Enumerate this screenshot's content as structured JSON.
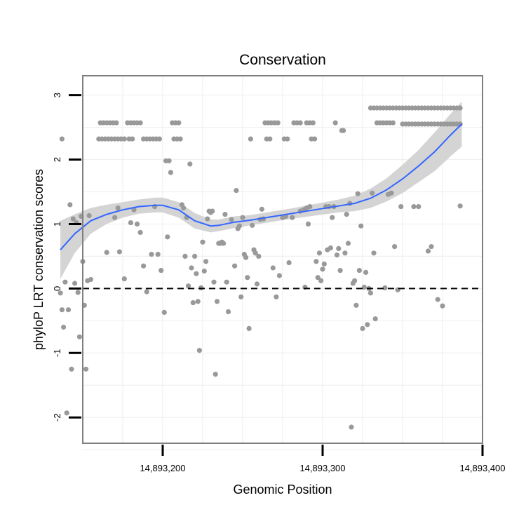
{
  "chart_data": {
    "type": "scatter",
    "title": "Conservation",
    "xlabel": "Genomic Position",
    "ylabel": "phyloP LRT conservation scores",
    "xlim": [
      14893150,
      14893400
    ],
    "ylim": [
      -2.4,
      3.3
    ],
    "x_ticks": [
      14893200,
      14893300,
      14893400
    ],
    "x_tick_labels": [
      "14,893,200",
      "14,893,300",
      "14,893,400"
    ],
    "y_ticks": [
      -2,
      -1,
      0,
      1,
      2,
      3
    ],
    "y_tick_labels": [
      "-2",
      "-1",
      "0",
      "1",
      "2",
      "3"
    ],
    "grid": true,
    "reference_line": {
      "y": 0,
      "style": "dashed"
    },
    "colors": {
      "points": "#999999",
      "smooth": "#3366ff",
      "band": "#d4d4d4",
      "panel_border": "#7f7f7f"
    },
    "points": [
      [
        14893137,
        2.32
      ],
      [
        14893136,
        -0.07
      ],
      [
        14893137,
        -0.33
      ],
      [
        14893138,
        -0.6
      ],
      [
        14893139,
        0.1
      ],
      [
        14893140,
        -1.93
      ],
      [
        14893141,
        -0.33
      ],
      [
        14893142,
        1.3
      ],
      [
        14893143,
        -1.25
      ],
      [
        14893144,
        1.08
      ],
      [
        14893145,
        0.08
      ],
      [
        14893146,
        1.02
      ],
      [
        14893147,
        -0.06
      ],
      [
        14893148,
        -0.75
      ],
      [
        14893149,
        1.12
      ],
      [
        14893150,
        0.42
      ],
      [
        14893151,
        -0.26
      ],
      [
        14893152,
        -1.25
      ],
      [
        14893153,
        0.12
      ],
      [
        14893154,
        1.13
      ],
      [
        14893155,
        0.14
      ],
      [
        14893160,
        2.32
      ],
      [
        14893162,
        2.32
      ],
      [
        14893164,
        2.32
      ],
      [
        14893166,
        2.32
      ],
      [
        14893168,
        2.32
      ],
      [
        14893170,
        2.32
      ],
      [
        14893172,
        2.32
      ],
      [
        14893174,
        2.32
      ],
      [
        14893176,
        2.32
      ],
      [
        14893161,
        2.57
      ],
      [
        14893163,
        2.57
      ],
      [
        14893165,
        2.57
      ],
      [
        14893167,
        2.57
      ],
      [
        14893169,
        2.57
      ],
      [
        14893171,
        2.57
      ],
      [
        14893165,
        0.56
      ],
      [
        14893170,
        1.1
      ],
      [
        14893172,
        1.25
      ],
      [
        14893173,
        0.57
      ],
      [
        14893176,
        0.15
      ],
      [
        14893178,
        2.57
      ],
      [
        14893180,
        2.57
      ],
      [
        14893182,
        2.57
      ],
      [
        14893184,
        2.57
      ],
      [
        14893186,
        2.57
      ],
      [
        14893179,
        2.32
      ],
      [
        14893181,
        2.32
      ],
      [
        14893188,
        2.32
      ],
      [
        14893190,
        2.32
      ],
      [
        14893192,
        2.32
      ],
      [
        14893194,
        2.32
      ],
      [
        14893196,
        2.32
      ],
      [
        14893198,
        2.32
      ],
      [
        14893180,
        1.02
      ],
      [
        14893182,
        1.22
      ],
      [
        14893184,
        1.0
      ],
      [
        14893186,
        0.87
      ],
      [
        14893188,
        0.35
      ],
      [
        14893190,
        -0.05
      ],
      [
        14893193,
        0.53
      ],
      [
        14893195,
        1.27
      ],
      [
        14893197,
        0.53
      ],
      [
        14893199,
        0.28
      ],
      [
        14893201,
        -0.37
      ],
      [
        14893202,
        1.98
      ],
      [
        14893204,
        1.98
      ],
      [
        14893205,
        1.8
      ],
      [
        14893206,
        2.57
      ],
      [
        14893208,
        2.57
      ],
      [
        14893210,
        2.57
      ],
      [
        14893207,
        2.32
      ],
      [
        14893209,
        2.32
      ],
      [
        14893211,
        2.32
      ],
      [
        14893203,
        0.8
      ],
      [
        14893212,
        1.3
      ],
      [
        14893213,
        1.25
      ],
      [
        14893214,
        0.5
      ],
      [
        14893215,
        1.1
      ],
      [
        14893216,
        0.04
      ],
      [
        14893217,
        1.93
      ],
      [
        14893218,
        0.32
      ],
      [
        14893219,
        -0.22
      ],
      [
        14893220,
        0.5
      ],
      [
        14893221,
        0.23
      ],
      [
        14893222,
        -0.2
      ],
      [
        14893223,
        -0.96
      ],
      [
        14893224,
        0.01
      ],
      [
        14893225,
        0.72
      ],
      [
        14893226,
        0.27
      ],
      [
        14893227,
        0.42
      ],
      [
        14893228,
        1.08
      ],
      [
        14893229,
        1.2
      ],
      [
        14893230,
        1.18
      ],
      [
        14893231,
        1.2
      ],
      [
        14893232,
        0.1
      ],
      [
        14893233,
        -1.33
      ],
      [
        14893234,
        -0.2
      ],
      [
        14893235,
        0.7
      ],
      [
        14893236,
        0.7
      ],
      [
        14893237,
        0.72
      ],
      [
        14893238,
        0.7
      ],
      [
        14893239,
        1.15
      ],
      [
        14893240,
        0.1
      ],
      [
        14893241,
        -0.36
      ],
      [
        14893243,
        1.07
      ],
      [
        14893245,
        0.35
      ],
      [
        14893246,
        1.52
      ],
      [
        14893247,
        0.93
      ],
      [
        14893248,
        0.97
      ],
      [
        14893249,
        -0.13
      ],
      [
        14893250,
        1.1
      ],
      [
        14893251,
        0.53
      ],
      [
        14893252,
        0.48
      ],
      [
        14893253,
        0.17
      ],
      [
        14893254,
        -0.62
      ],
      [
        14893255,
        2.32
      ],
      [
        14893256,
        0.98
      ],
      [
        14893257,
        0.6
      ],
      [
        14893258,
        0.55
      ],
      [
        14893259,
        0.07
      ],
      [
        14893260,
        0.5
      ],
      [
        14893261,
        1.07
      ],
      [
        14893262,
        1.23
      ],
      [
        14893263,
        1.08
      ],
      [
        14893264,
        2.57
      ],
      [
        14893266,
        2.57
      ],
      [
        14893268,
        2.57
      ],
      [
        14893270,
        2.57
      ],
      [
        14893272,
        2.57
      ],
      [
        14893265,
        2.32
      ],
      [
        14893267,
        2.32
      ],
      [
        14893276,
        2.32
      ],
      [
        14893278,
        2.32
      ],
      [
        14893269,
        0.32
      ],
      [
        14893271,
        -0.13
      ],
      [
        14893273,
        0.2
      ],
      [
        14893275,
        1.1
      ],
      [
        14893277,
        1.12
      ],
      [
        14893279,
        0.4
      ],
      [
        14893281,
        1.1
      ],
      [
        14893282,
        2.57
      ],
      [
        14893284,
        2.57
      ],
      [
        14893286,
        2.57
      ],
      [
        14893290,
        2.57
      ],
      [
        14893292,
        2.57
      ],
      [
        14893294,
        2.57
      ],
      [
        14893286,
        1.2
      ],
      [
        14893288,
        1.22
      ],
      [
        14893290,
        1.25
      ],
      [
        14893292,
        1.27
      ],
      [
        14893289,
        0.02
      ],
      [
        14893291,
        1.0
      ],
      [
        14893293,
        2.32
      ],
      [
        14893295,
        2.32
      ],
      [
        14893296,
        0.42
      ],
      [
        14893297,
        0.17
      ],
      [
        14893298,
        0.55
      ],
      [
        14893299,
        0.12
      ],
      [
        14893300,
        0.3
      ],
      [
        14893301,
        0.38
      ],
      [
        14893302,
        1.27
      ],
      [
        14893303,
        0.6
      ],
      [
        14893304,
        1.27
      ],
      [
        14893305,
        0.63
      ],
      [
        14893306,
        1.1
      ],
      [
        14893307,
        1.27
      ],
      [
        14893308,
        2.57
      ],
      [
        14893309,
        0.52
      ],
      [
        14893310,
        0.62
      ],
      [
        14893311,
        0.28
      ],
      [
        14893312,
        2.45
      ],
      [
        14893313,
        2.45
      ],
      [
        14893314,
        0.55
      ],
      [
        14893315,
        1.15
      ],
      [
        14893316,
        0.7
      ],
      [
        14893317,
        1.32
      ],
      [
        14893318,
        -2.15
      ],
      [
        14893319,
        0.08
      ],
      [
        14893320,
        0.12
      ],
      [
        14893321,
        -0.26
      ],
      [
        14893322,
        1.47
      ],
      [
        14893323,
        0.28
      ],
      [
        14893324,
        0.97
      ],
      [
        14893325,
        -0.62
      ],
      [
        14893326,
        0.02
      ],
      [
        14893327,
        0.25
      ],
      [
        14893328,
        -0.56
      ],
      [
        14893329,
        0.0
      ],
      [
        14893330,
        -0.07
      ],
      [
        14893331,
        1.48
      ],
      [
        14893332,
        0.55
      ],
      [
        14893333,
        -0.47
      ],
      [
        14893334,
        2.57
      ],
      [
        14893336,
        2.57
      ],
      [
        14893338,
        2.57
      ],
      [
        14893340,
        2.57
      ],
      [
        14893342,
        2.57
      ],
      [
        14893344,
        2.57
      ],
      [
        14893339,
        0.01
      ],
      [
        14893341,
        1.46
      ],
      [
        14893343,
        1.48
      ],
      [
        14893345,
        0.65
      ],
      [
        14893347,
        -0.02
      ],
      [
        14893349,
        1.27
      ],
      [
        14893330,
        2.8
      ],
      [
        14893332,
        2.8
      ],
      [
        14893334,
        2.8
      ],
      [
        14893336,
        2.8
      ],
      [
        14893338,
        2.8
      ],
      [
        14893340,
        2.8
      ],
      [
        14893342,
        2.8
      ],
      [
        14893344,
        2.8
      ],
      [
        14893346,
        2.8
      ],
      [
        14893348,
        2.8
      ],
      [
        14893350,
        2.8
      ],
      [
        14893352,
        2.8
      ],
      [
        14893354,
        2.8
      ],
      [
        14893356,
        2.8
      ],
      [
        14893358,
        2.8
      ],
      [
        14893360,
        2.8
      ],
      [
        14893362,
        2.8
      ],
      [
        14893364,
        2.8
      ],
      [
        14893366,
        2.8
      ],
      [
        14893368,
        2.8
      ],
      [
        14893370,
        2.8
      ],
      [
        14893372,
        2.8
      ],
      [
        14893374,
        2.8
      ],
      [
        14893376,
        2.8
      ],
      [
        14893378,
        2.8
      ],
      [
        14893380,
        2.8
      ],
      [
        14893382,
        2.8
      ],
      [
        14893384,
        2.8
      ],
      [
        14893386,
        2.8
      ],
      [
        14893350,
        2.55
      ],
      [
        14893352,
        2.55
      ],
      [
        14893354,
        2.55
      ],
      [
        14893356,
        2.55
      ],
      [
        14893358,
        2.55
      ],
      [
        14893360,
        2.55
      ],
      [
        14893362,
        2.55
      ],
      [
        14893364,
        2.55
      ],
      [
        14893366,
        2.55
      ],
      [
        14893368,
        2.55
      ],
      [
        14893370,
        2.55
      ],
      [
        14893372,
        2.55
      ],
      [
        14893374,
        2.55
      ],
      [
        14893376,
        2.55
      ],
      [
        14893378,
        2.55
      ],
      [
        14893380,
        2.55
      ],
      [
        14893382,
        2.55
      ],
      [
        14893384,
        2.55
      ],
      [
        14893386,
        2.55
      ],
      [
        14893357,
        1.27
      ],
      [
        14893360,
        1.27
      ],
      [
        14893366,
        0.58
      ],
      [
        14893368,
        0.65
      ],
      [
        14893372,
        -0.17
      ],
      [
        14893375,
        -0.27
      ],
      [
        14893386,
        1.28
      ]
    ],
    "smooth": {
      "x": [
        14893136,
        14893145,
        14893155,
        14893165,
        14893175,
        14893185,
        14893195,
        14893200,
        14893210,
        14893220,
        14893230,
        14893235,
        14893245,
        14893255,
        14893265,
        14893280,
        14893295,
        14893310,
        14893320,
        14893330,
        14893340,
        14893350,
        14893360,
        14893370,
        14893380,
        14893387
      ],
      "y": [
        0.6,
        0.85,
        1.05,
        1.15,
        1.22,
        1.27,
        1.29,
        1.29,
        1.22,
        1.05,
        0.97,
        0.98,
        1.03,
        1.06,
        1.1,
        1.16,
        1.22,
        1.28,
        1.32,
        1.4,
        1.53,
        1.7,
        1.9,
        2.12,
        2.38,
        2.55
      ],
      "lower": [
        0.15,
        0.55,
        0.85,
        1.0,
        1.1,
        1.16,
        1.18,
        1.18,
        1.1,
        0.93,
        0.87,
        0.89,
        0.94,
        0.98,
        1.02,
        1.08,
        1.13,
        1.18,
        1.2,
        1.25,
        1.35,
        1.48,
        1.65,
        1.82,
        2.05,
        2.2
      ],
      "upper": [
        1.05,
        1.15,
        1.25,
        1.3,
        1.34,
        1.38,
        1.41,
        1.41,
        1.34,
        1.17,
        1.07,
        1.07,
        1.12,
        1.14,
        1.18,
        1.24,
        1.31,
        1.38,
        1.44,
        1.55,
        1.71,
        1.92,
        2.15,
        2.42,
        2.71,
        2.9
      ]
    }
  }
}
